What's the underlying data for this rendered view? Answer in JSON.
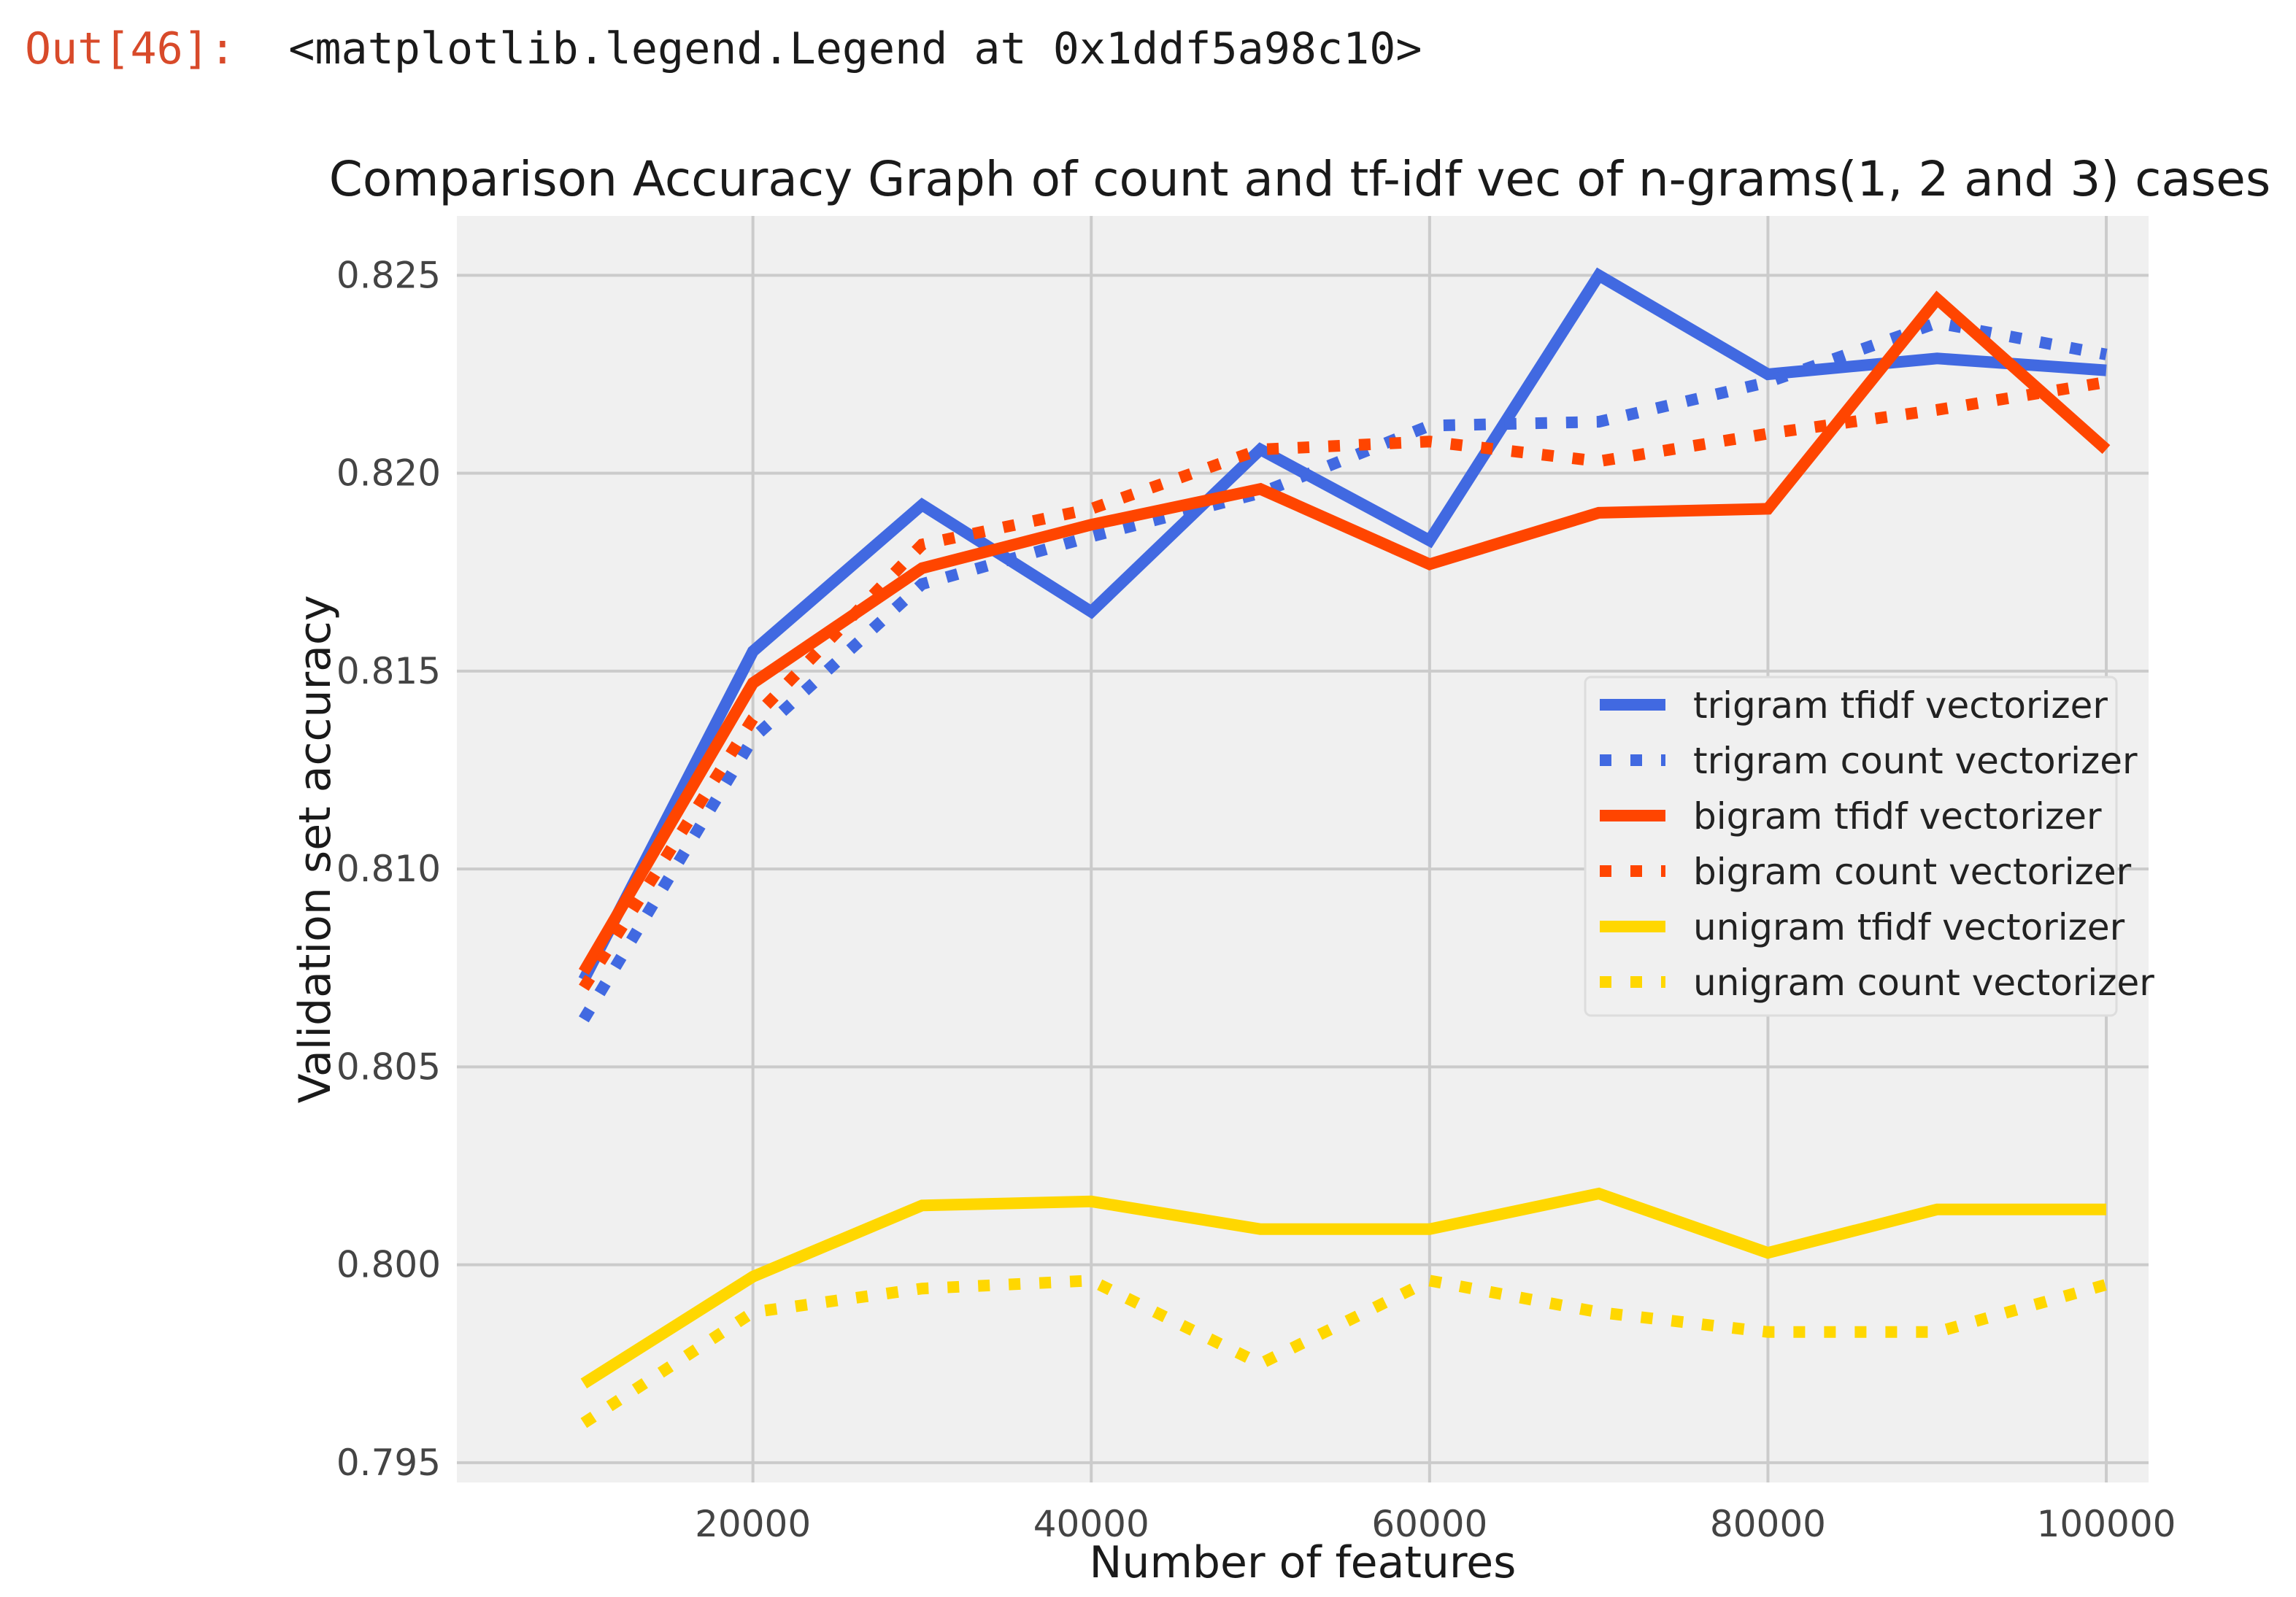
{
  "cell_output": {
    "prompt": "Out[46]:",
    "text": "<matplotlib.legend.Legend at 0x1ddf5a98c10>"
  },
  "chart_data": {
    "type": "line",
    "title": "Comparison Accuracy Graph of count and tf-idf vec of n-grams(1, 2 and 3) cases",
    "xlabel": "Number of features",
    "ylabel": "Validation set accuracy",
    "xlim": [
      2500,
      102500
    ],
    "ylim": [
      0.7945,
      0.8265
    ],
    "xticks": [
      20000,
      40000,
      60000,
      80000,
      100000
    ],
    "yticks": [
      0.795,
      0.8,
      0.805,
      0.81,
      0.815,
      0.82,
      0.825
    ],
    "ytick_labels": [
      "0.795",
      "0.800",
      "0.805",
      "0.810",
      "0.815",
      "0.820",
      "0.825"
    ],
    "grid": true,
    "legend_position": "center-right",
    "x": [
      10000,
      20000,
      30000,
      40000,
      50000,
      60000,
      70000,
      80000,
      90000,
      100000
    ],
    "series": [
      {
        "name": "trigram tfidf vectorizer",
        "color": "#4169e1",
        "style": "solid",
        "values": [
          0.8072,
          0.8155,
          0.8192,
          0.8165,
          0.8206,
          0.8183,
          0.825,
          0.8225,
          0.8229,
          0.8226
        ]
      },
      {
        "name": "trigram count vectorizer",
        "color": "#4169e1",
        "style": "dotted",
        "values": [
          0.8062,
          0.8133,
          0.8172,
          0.8184,
          0.8195,
          0.8212,
          0.8213,
          0.8223,
          0.8238,
          0.823
        ]
      },
      {
        "name": "bigram tfidf vectorizer",
        "color": "#ff4500",
        "style": "solid",
        "values": [
          0.8074,
          0.8147,
          0.8176,
          0.8187,
          0.8196,
          0.8177,
          0.819,
          0.8191,
          0.8244,
          0.8206
        ]
      },
      {
        "name": "bigram count vectorizer",
        "color": "#ff4500",
        "style": "dotted",
        "values": [
          0.807,
          0.8138,
          0.8182,
          0.8191,
          0.8206,
          0.8208,
          0.8203,
          0.821,
          0.8216,
          0.8223
        ]
      },
      {
        "name": "unigram tfidf vectorizer",
        "color": "#ffd700",
        "style": "solid",
        "values": [
          0.797,
          0.7997,
          0.8015,
          0.8016,
          0.8009,
          0.8009,
          0.8018,
          0.8003,
          0.8014,
          0.8014
        ]
      },
      {
        "name": "unigram count vectorizer",
        "color": "#ffd700",
        "style": "dotted",
        "values": [
          0.796,
          0.7988,
          0.7994,
          0.7996,
          0.7975,
          0.7996,
          0.7988,
          0.7983,
          0.7983,
          0.7995
        ]
      }
    ]
  }
}
